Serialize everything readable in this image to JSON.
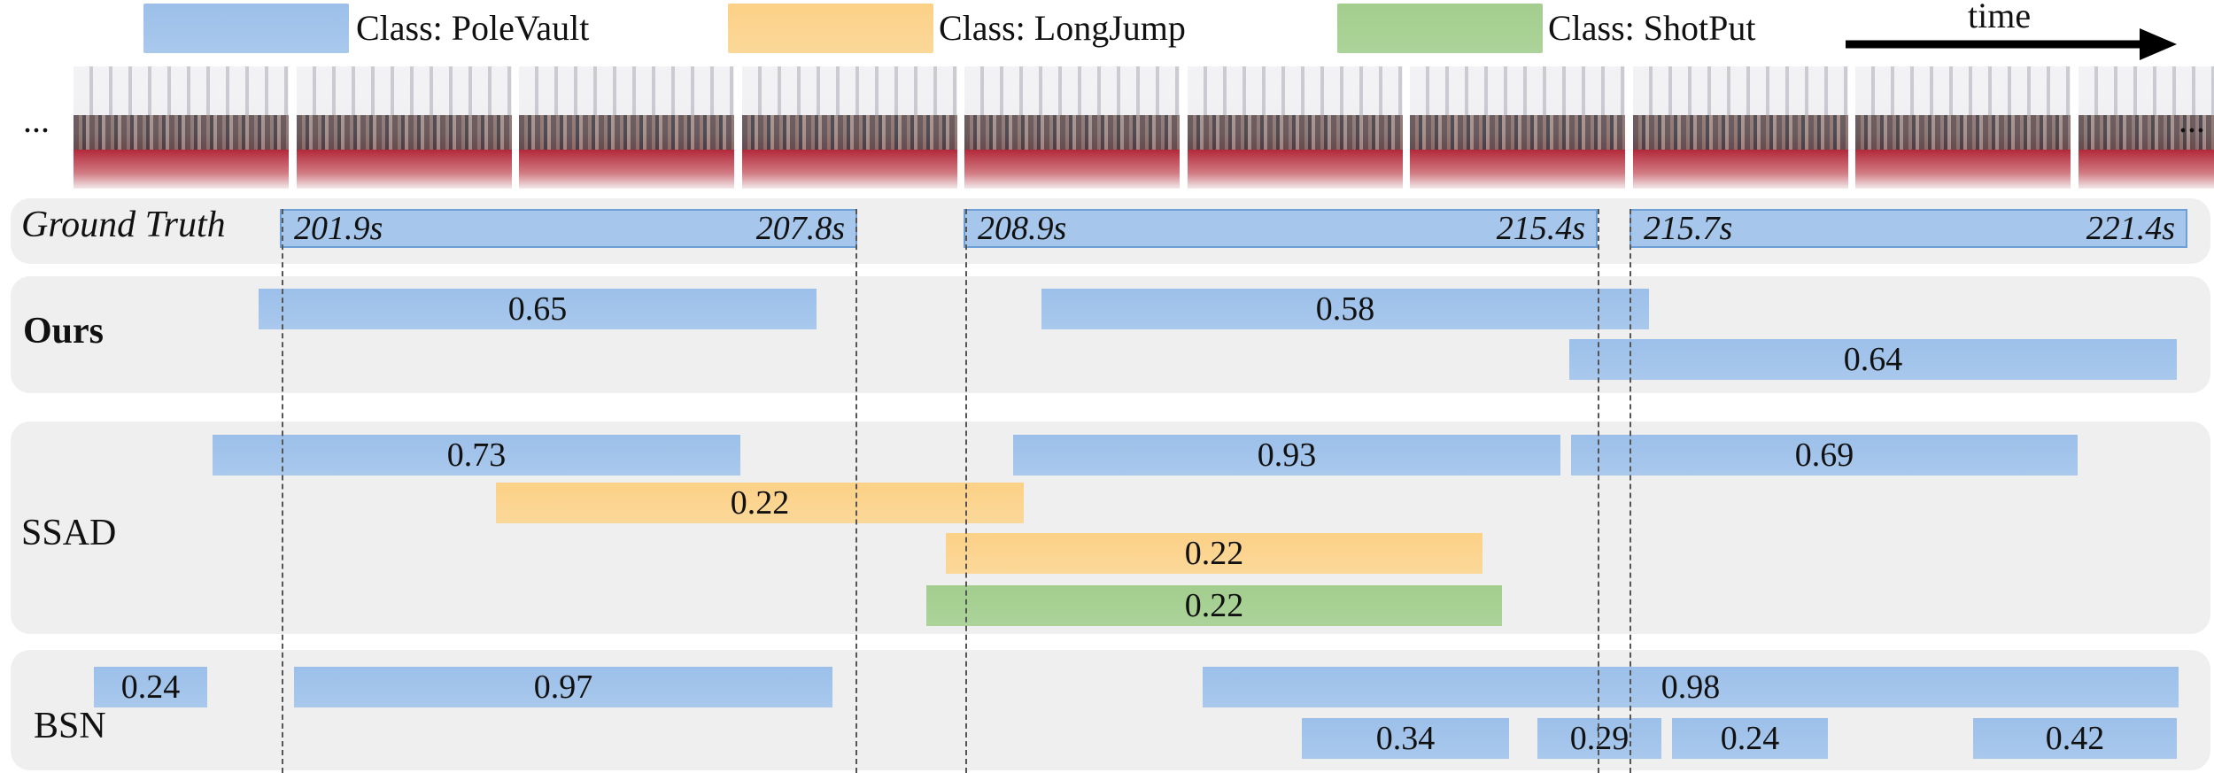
{
  "legend": {
    "pole_label": "Class: PoleVault",
    "long_label": "Class: LongJump",
    "shot_label": "Class: ShotPut",
    "time_label": "time"
  },
  "colors": {
    "PoleVault": "#a3c5ec",
    "LongJump": "#fbd48f",
    "ShotPut": "#a8d194"
  },
  "frames": {
    "count": 10,
    "ellipsis_left": "...",
    "ellipsis_right": "..."
  },
  "ground_truth": {
    "label": "Ground Truth",
    "segments": [
      {
        "start": "201.9s",
        "end": "207.8s",
        "class": "PoleVault"
      },
      {
        "start": "208.9s",
        "end": "215.4s",
        "class": "PoleVault"
      },
      {
        "start": "215.7s",
        "end": "221.4s",
        "class": "PoleVault"
      }
    ]
  },
  "methods": [
    {
      "label": "Ours",
      "bars": [
        {
          "score": "0.65",
          "class": "PoleVault"
        },
        {
          "score": "0.58",
          "class": "PoleVault"
        },
        {
          "score": "0.64",
          "class": "PoleVault"
        }
      ]
    },
    {
      "label": "SSAD",
      "bars": [
        {
          "score": "0.73",
          "class": "PoleVault"
        },
        {
          "score": "0.93",
          "class": "PoleVault"
        },
        {
          "score": "0.69",
          "class": "PoleVault"
        },
        {
          "score": "0.22",
          "class": "LongJump"
        },
        {
          "score": "0.22",
          "class": "LongJump"
        },
        {
          "score": "0.22",
          "class": "ShotPut"
        }
      ]
    },
    {
      "label": "BSN",
      "bars": [
        {
          "score": "0.24",
          "class": "PoleVault"
        },
        {
          "score": "0.97",
          "class": "PoleVault"
        },
        {
          "score": "0.98",
          "class": "PoleVault"
        },
        {
          "score": "0.34",
          "class": "PoleVault"
        },
        {
          "score": "0.29",
          "class": "PoleVault"
        },
        {
          "score": "0.24",
          "class": "PoleVault"
        },
        {
          "score": "0.42",
          "class": "PoleVault"
        }
      ]
    }
  ]
}
